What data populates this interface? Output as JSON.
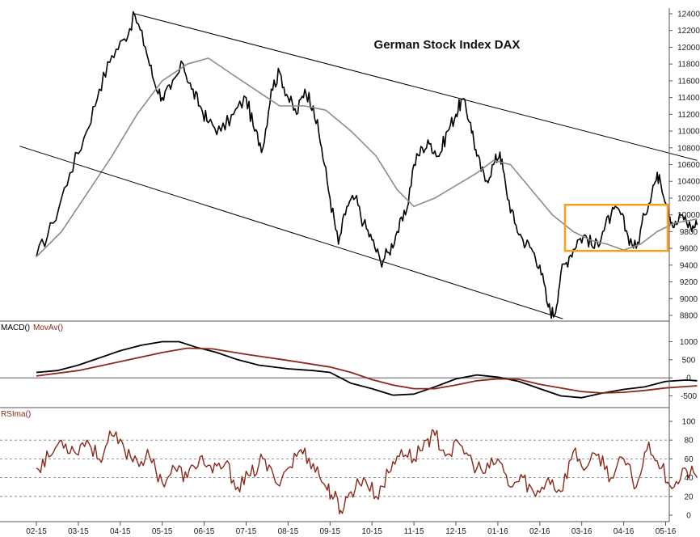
{
  "chart_data": [
    {
      "type": "line",
      "title": "German Stock Index DAX",
      "ylim": [
        8800,
        12400
      ],
      "yticks": [
        8800,
        9000,
        9200,
        9400,
        9600,
        9800,
        10000,
        10200,
        10400,
        10600,
        10800,
        11000,
        11200,
        11400,
        11600,
        11800,
        12000,
        12200,
        12400
      ],
      "x_categories": [
        "02-15",
        "03-15",
        "04-15",
        "05-15",
        "06-15",
        "07-15",
        "08-15",
        "09-15",
        "10-15",
        "11-15",
        "12-15",
        "01-16",
        "02-16",
        "03-16",
        "04-16",
        "05-16"
      ],
      "series": [
        {
          "name": "",
          "color": "#000000",
          "role": "price",
          "points": [
            [
              0,
              9500
            ],
            [
              0.4,
              9900
            ],
            [
              0.8,
              10500
            ],
            [
              1.2,
              11000
            ],
            [
              1.5,
              11500
            ],
            [
              1.8,
              11900
            ],
            [
              2.1,
              12100
            ],
            [
              2.35,
              12380
            ],
            [
              2.6,
              12000
            ],
            [
              2.8,
              11600
            ],
            [
              3.0,
              11400
            ],
            [
              3.2,
              11500
            ],
            [
              3.5,
              11800
            ],
            [
              3.7,
              11500
            ],
            [
              3.9,
              11300
            ],
            [
              4.1,
              11100
            ],
            [
              4.4,
              11000
            ],
            [
              4.7,
              11200
            ],
            [
              5.0,
              11400
            ],
            [
              5.2,
              11000
            ],
            [
              5.4,
              10800
            ],
            [
              5.6,
              11500
            ],
            [
              5.8,
              11700
            ],
            [
              6.0,
              11400
            ],
            [
              6.2,
              11200
            ],
            [
              6.4,
              11500
            ],
            [
              6.6,
              11300
            ],
            [
              6.8,
              10800
            ],
            [
              7.0,
              10200
            ],
            [
              7.2,
              9650
            ],
            [
              7.4,
              10100
            ],
            [
              7.6,
              10200
            ],
            [
              7.8,
              9900
            ],
            [
              8.0,
              9700
            ],
            [
              8.2,
              9450
            ],
            [
              8.4,
              9550
            ],
            [
              8.6,
              9800
            ],
            [
              8.8,
              10000
            ],
            [
              9.0,
              10600
            ],
            [
              9.2,
              10800
            ],
            [
              9.4,
              10850
            ],
            [
              9.6,
              10700
            ],
            [
              9.8,
              11000
            ],
            [
              10.0,
              11200
            ],
            [
              10.15,
              11380
            ],
            [
              10.35,
              11100
            ],
            [
              10.5,
              10700
            ],
            [
              10.7,
              10400
            ],
            [
              10.9,
              10600
            ],
            [
              11.05,
              10750
            ],
            [
              11.2,
              10300
            ],
            [
              11.4,
              9900
            ],
            [
              11.6,
              9700
            ],
            [
              11.8,
              9600
            ],
            [
              12.0,
              9400
            ],
            [
              12.2,
              8900
            ],
            [
              12.35,
              8800
            ],
            [
              12.5,
              9300
            ],
            [
              12.7,
              9500
            ],
            [
              12.9,
              9700
            ],
            [
              13.1,
              9750
            ],
            [
              13.3,
              9600
            ],
            [
              13.5,
              9800
            ],
            [
              13.7,
              10000
            ],
            [
              13.9,
              10050
            ],
            [
              14.1,
              9750
            ],
            [
              14.3,
              9600
            ],
            [
              14.5,
              10000
            ],
            [
              14.7,
              10350
            ],
            [
              14.85,
              10480
            ],
            [
              15.05,
              10100
            ],
            [
              15.2,
              9850
            ],
            [
              15.4,
              10000
            ],
            [
              15.6,
              9850
            ],
            [
              15.75,
              9880
            ]
          ]
        },
        {
          "name": "",
          "color": "#8c8c8c",
          "role": "moving-average",
          "points": [
            [
              0,
              9500
            ],
            [
              0.6,
              9800
            ],
            [
              1.2,
              10250
            ],
            [
              1.8,
              10700
            ],
            [
              2.4,
              11200
            ],
            [
              3.0,
              11600
            ],
            [
              3.6,
              11800
            ],
            [
              4.1,
              11870
            ],
            [
              4.6,
              11700
            ],
            [
              5.2,
              11500
            ],
            [
              5.8,
              11300
            ],
            [
              6.4,
              11300
            ],
            [
              6.9,
              11250
            ],
            [
              7.5,
              11000
            ],
            [
              8.1,
              10700
            ],
            [
              8.6,
              10300
            ],
            [
              9.0,
              10100
            ],
            [
              9.5,
              10200
            ],
            [
              10.0,
              10350
            ],
            [
              10.5,
              10500
            ],
            [
              10.9,
              10650
            ],
            [
              11.3,
              10600
            ],
            [
              11.8,
              10300
            ],
            [
              12.3,
              10000
            ],
            [
              12.8,
              9800
            ],
            [
              13.2,
              9700
            ],
            [
              13.6,
              9650
            ],
            [
              14.0,
              9580
            ],
            [
              14.4,
              9650
            ],
            [
              14.8,
              9800
            ],
            [
              15.2,
              9900
            ],
            [
              15.75,
              9950
            ]
          ]
        }
      ],
      "trendlines": [
        {
          "from": [
            2.35,
            12400
          ],
          "to": [
            15.75,
            10650
          ]
        },
        {
          "from": [
            -0.4,
            10820
          ],
          "to": [
            12.55,
            8760
          ]
        }
      ],
      "highlight_box": {
        "x_range": [
          12.6,
          15.75
        ],
        "y_range": [
          9570,
          10120
        ],
        "color": "#f7a11a"
      }
    },
    {
      "type": "line",
      "ylim": [
        -600,
        1100
      ],
      "yticks": [
        -500,
        0,
        500,
        1000
      ],
      "zero_line": true,
      "series": [
        {
          "name": "MACD()",
          "color": "#000000",
          "points": [
            [
              0,
              150
            ],
            [
              0.5,
              200
            ],
            [
              1.0,
              350
            ],
            [
              1.5,
              550
            ],
            [
              2.0,
              750
            ],
            [
              2.5,
              900
            ],
            [
              3.0,
              1000
            ],
            [
              3.4,
              1000
            ],
            [
              3.8,
              850
            ],
            [
              4.3,
              700
            ],
            [
              4.8,
              500
            ],
            [
              5.3,
              350
            ],
            [
              6.0,
              250
            ],
            [
              6.6,
              200
            ],
            [
              7.0,
              150
            ],
            [
              7.5,
              -150
            ],
            [
              8.0,
              -300
            ],
            [
              8.5,
              -480
            ],
            [
              9.0,
              -450
            ],
            [
              9.5,
              -250
            ],
            [
              10.0,
              -30
            ],
            [
              10.5,
              80
            ],
            [
              11.0,
              20
            ],
            [
              11.5,
              -100
            ],
            [
              12.0,
              -300
            ],
            [
              12.5,
              -500
            ],
            [
              13.0,
              -550
            ],
            [
              13.5,
              -420
            ],
            [
              14.0,
              -320
            ],
            [
              14.5,
              -250
            ],
            [
              15.0,
              -100
            ],
            [
              15.5,
              -60
            ],
            [
              15.75,
              -80
            ]
          ]
        },
        {
          "name": "MovAv()",
          "color": "#8b2a1a",
          "points": [
            [
              0,
              50
            ],
            [
              1.0,
              200
            ],
            [
              2.0,
              450
            ],
            [
              3.0,
              700
            ],
            [
              3.6,
              820
            ],
            [
              4.2,
              800
            ],
            [
              5.0,
              650
            ],
            [
              6.0,
              480
            ],
            [
              7.0,
              300
            ],
            [
              7.5,
              150
            ],
            [
              8.0,
              -50
            ],
            [
              8.5,
              -200
            ],
            [
              9.0,
              -300
            ],
            [
              9.5,
              -300
            ],
            [
              10.0,
              -200
            ],
            [
              10.5,
              -80
            ],
            [
              11.0,
              -30
            ],
            [
              11.5,
              -40
            ],
            [
              12.0,
              -180
            ],
            [
              12.5,
              -280
            ],
            [
              13.0,
              -380
            ],
            [
              13.5,
              -420
            ],
            [
              14.0,
              -400
            ],
            [
              14.5,
              -350
            ],
            [
              15.0,
              -280
            ],
            [
              15.75,
              -220
            ]
          ]
        }
      ]
    },
    {
      "type": "line",
      "ylim": [
        0,
        100
      ],
      "yticks": [
        0,
        20,
        40,
        60,
        80,
        100
      ],
      "gridlines": [
        20,
        40,
        60,
        80
      ],
      "series": [
        {
          "name": "RSIma()",
          "color": "#8b2a1a",
          "points": [
            [
              0,
              50
            ],
            [
              0.3,
              62
            ],
            [
              0.6,
              80
            ],
            [
              0.9,
              68
            ],
            [
              1.2,
              80
            ],
            [
              1.5,
              60
            ],
            [
              1.8,
              85
            ],
            [
              2.1,
              70
            ],
            [
              2.4,
              58
            ],
            [
              2.7,
              62
            ],
            [
              3.0,
              35
            ],
            [
              3.3,
              50
            ],
            [
              3.6,
              40
            ],
            [
              3.9,
              62
            ],
            [
              4.2,
              45
            ],
            [
              4.5,
              55
            ],
            [
              4.8,
              30
            ],
            [
              5.1,
              42
            ],
            [
              5.4,
              60
            ],
            [
              5.7,
              35
            ],
            [
              6.0,
              50
            ],
            [
              6.3,
              70
            ],
            [
              6.6,
              55
            ],
            [
              6.9,
              30
            ],
            [
              7.1,
              20
            ],
            [
              7.25,
              5
            ],
            [
              7.5,
              25
            ],
            [
              7.8,
              40
            ],
            [
              8.1,
              20
            ],
            [
              8.4,
              45
            ],
            [
              8.7,
              70
            ],
            [
              9.0,
              60
            ],
            [
              9.3,
              80
            ],
            [
              9.5,
              85
            ],
            [
              9.8,
              65
            ],
            [
              10.1,
              75
            ],
            [
              10.4,
              55
            ],
            [
              10.7,
              45
            ],
            [
              11.0,
              60
            ],
            [
              11.3,
              30
            ],
            [
              11.6,
              40
            ],
            [
              11.9,
              20
            ],
            [
              12.2,
              40
            ],
            [
              12.5,
              25
            ],
            [
              12.8,
              68
            ],
            [
              13.1,
              50
            ],
            [
              13.4,
              65
            ],
            [
              13.7,
              40
            ],
            [
              14.0,
              60
            ],
            [
              14.3,
              30
            ],
            [
              14.6,
              78
            ],
            [
              14.9,
              50
            ],
            [
              15.2,
              30
            ],
            [
              15.5,
              48
            ],
            [
              15.75,
              40
            ]
          ]
        }
      ]
    }
  ],
  "colors": {
    "price": "#000000",
    "moving_average": "#8c8c8c",
    "macd": "#000000",
    "signal": "#8b2a1a",
    "rsi": "#8b2a1a",
    "box": "#f7a11a"
  }
}
